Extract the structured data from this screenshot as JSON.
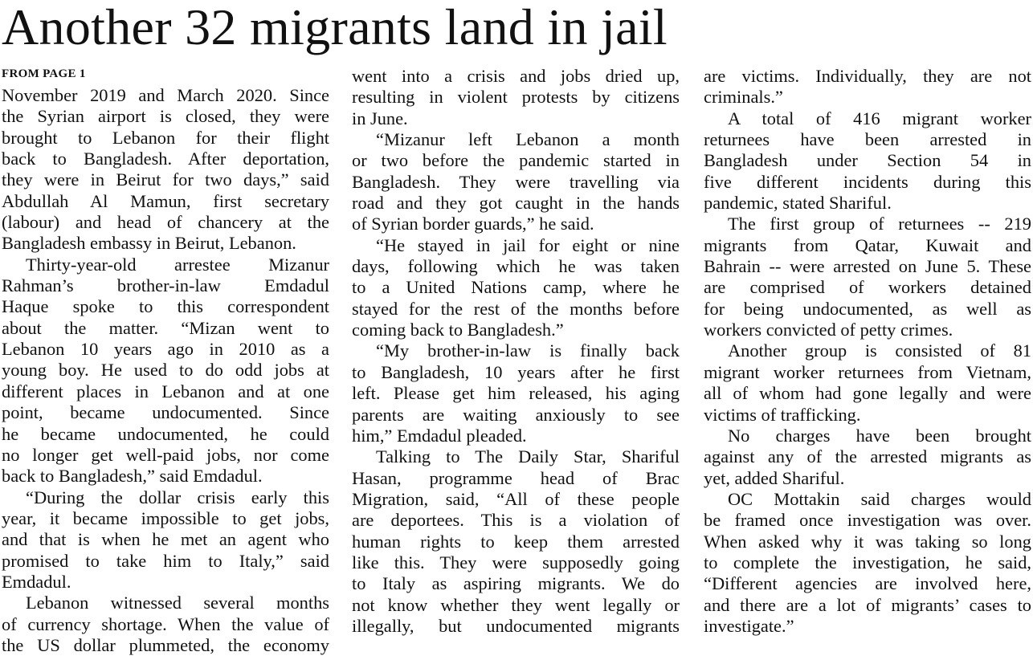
{
  "headline": "Another 32 migrants land in jail",
  "kicker": "FROM PAGE 1",
  "columns": [
    {
      "paragraphs": [
        {
          "indent": false,
          "lines": [
            "November 2019 and March 2020. Since",
            "the Syrian airport is closed, they were",
            "brought to Lebanon for their flight",
            "back to Bangladesh. After deportation,",
            "they were in Beirut for two days,” said",
            "Abdullah Al Mamun, first secretary",
            "(labour) and head of chancery at the",
            "Bangladesh embassy in Beirut, Lebanon."
          ]
        },
        {
          "indent": true,
          "lines": [
            "Thirty-year-old arrestee Mizanur",
            "Rahman’s brother-in-law Emdadul",
            "Haque spoke to this correspondent",
            "about the matter. “Mizan went to",
            "Lebanon 10 years ago in 2010 as a",
            "young boy. He used to do odd jobs at",
            "different places in Lebanon and at one",
            "point, became undocumented. Since",
            "he became undocumented, he could",
            "no longer get well-paid jobs, nor come",
            "back to Bangladesh,” said Emdadul."
          ]
        },
        {
          "indent": true,
          "lines": [
            "“During the dollar crisis early this",
            "year, it became impossible to get jobs,",
            "and that is when he met an agent who",
            "promised to take him to Italy,” said",
            "Emdadul."
          ]
        },
        {
          "indent": true,
          "lines": [
            "Lebanon witnessed several months",
            "of currency shortage. When the value of",
            "the US dollar plummeted, the economy"
          ]
        }
      ]
    },
    {
      "paragraphs": [
        {
          "indent": false,
          "lines": [
            "went into a crisis and jobs dried up,",
            "resulting in violent protests by citizens",
            "in June."
          ]
        },
        {
          "indent": true,
          "lines": [
            "“Mizanur left Lebanon a month",
            "or two before the pandemic started in",
            "Bangladesh. They were travelling via",
            "road and they got caught in the hands",
            "of Syrian border guards,” he said."
          ]
        },
        {
          "indent": true,
          "lines": [
            "“He stayed in jail for eight or nine",
            "days, following which he was taken",
            "to a United Nations camp, where he",
            "stayed for the rest of the months before",
            "coming back to Bangladesh.”"
          ]
        },
        {
          "indent": true,
          "lines": [
            "“My brother-in-law is finally back",
            "to Bangladesh, 10 years after he first",
            "left. Please get him released, his aging",
            "parents are waiting anxiously to see",
            "him,” Emdadul pleaded."
          ]
        },
        {
          "indent": true,
          "lines": [
            "Talking to The Daily Star, Shariful",
            "Hasan, programme head of Brac",
            "Migration, said, “All of these people",
            "are deportees. This is a violation of",
            "human rights to keep them arrested",
            "like this. They were supposedly going",
            "to Italy as aspiring migrants. We do",
            "not know whether they went legally or",
            "illegally, but undocumented migrants"
          ]
        }
      ]
    },
    {
      "paragraphs": [
        {
          "indent": false,
          "lines": [
            "are victims. Individually, they are not",
            "criminals.”"
          ]
        },
        {
          "indent": true,
          "lines": [
            "A total of 416 migrant worker",
            "returnees have been arrested in",
            "Bangladesh under Section 54 in",
            "five different incidents during this",
            "pandemic, stated Shariful."
          ]
        },
        {
          "indent": true,
          "lines": [
            "The first group of returnees -- 219",
            "migrants from Qatar, Kuwait and",
            "Bahrain -- were arrested on June 5. These",
            "are comprised of workers detained",
            "for being undocumented, as well as",
            "workers convicted of petty crimes."
          ]
        },
        {
          "indent": true,
          "lines": [
            "Another group is consisted of 81",
            "migrant worker returnees from Vietnam,",
            "all of whom had gone legally and were",
            "victims of trafficking."
          ]
        },
        {
          "indent": true,
          "lines": [
            "No charges have been brought",
            "against any of the arrested migrants as",
            "yet, added Shariful."
          ]
        },
        {
          "indent": true,
          "lines": [
            "OC Mottakin said charges would",
            "be framed once investigation was over.",
            "When asked why it was taking so long",
            "to complete the investigation, he said,",
            "“Different agencies are involved here,",
            "and there are a lot of migrants’ cases to",
            "investigate.”"
          ]
        }
      ]
    }
  ]
}
